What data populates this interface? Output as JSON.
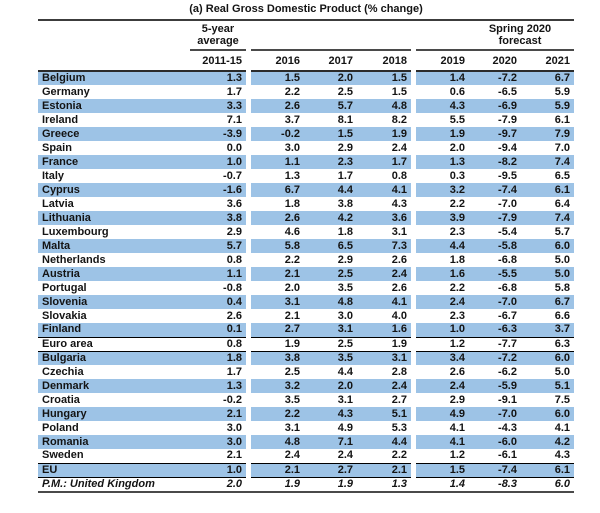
{
  "title": "(a) Real Gross Domestic Product (% change)",
  "table": {
    "group_labels": {
      "avg_line1": "5-year",
      "avg_line2": "average",
      "forecast_line1": "Spring 2020",
      "forecast_line2": "forecast"
    },
    "year_headers": [
      "2011-15",
      "2016",
      "2017",
      "2018",
      "2019",
      "2020",
      "2021"
    ],
    "highlight_color": "#9DC3E6",
    "rows": [
      {
        "name": "Belgium",
        "values": [
          "1.3",
          "1.5",
          "2.0",
          "1.5",
          "1.4",
          "-7.2",
          "6.7"
        ],
        "highlight": true
      },
      {
        "name": "Germany",
        "values": [
          "1.7",
          "2.2",
          "2.5",
          "1.5",
          "0.6",
          "-6.5",
          "5.9"
        ],
        "highlight": false
      },
      {
        "name": "Estonia",
        "values": [
          "3.3",
          "2.6",
          "5.7",
          "4.8",
          "4.3",
          "-6.9",
          "5.9"
        ],
        "highlight": true
      },
      {
        "name": "Ireland",
        "values": [
          "7.1",
          "3.7",
          "8.1",
          "8.2",
          "5.5",
          "-7.9",
          "6.1"
        ],
        "highlight": false
      },
      {
        "name": "Greece",
        "values": [
          "-3.9",
          "-0.2",
          "1.5",
          "1.9",
          "1.9",
          "-9.7",
          "7.9"
        ],
        "highlight": true
      },
      {
        "name": "Spain",
        "values": [
          "0.0",
          "3.0",
          "2.9",
          "2.4",
          "2.0",
          "-9.4",
          "7.0"
        ],
        "highlight": false
      },
      {
        "name": "France",
        "values": [
          "1.0",
          "1.1",
          "2.3",
          "1.7",
          "1.3",
          "-8.2",
          "7.4"
        ],
        "highlight": true
      },
      {
        "name": "Italy",
        "values": [
          "-0.7",
          "1.3",
          "1.7",
          "0.8",
          "0.3",
          "-9.5",
          "6.5"
        ],
        "highlight": false
      },
      {
        "name": "Cyprus",
        "values": [
          "-1.6",
          "6.7",
          "4.4",
          "4.1",
          "3.2",
          "-7.4",
          "6.1"
        ],
        "highlight": true
      },
      {
        "name": "Latvia",
        "values": [
          "3.6",
          "1.8",
          "3.8",
          "4.3",
          "2.2",
          "-7.0",
          "6.4"
        ],
        "highlight": false
      },
      {
        "name": "Lithuania",
        "values": [
          "3.8",
          "2.6",
          "4.2",
          "3.6",
          "3.9",
          "-7.9",
          "7.4"
        ],
        "highlight": true
      },
      {
        "name": "Luxembourg",
        "values": [
          "2.9",
          "4.6",
          "1.8",
          "3.1",
          "2.3",
          "-5.4",
          "5.7"
        ],
        "highlight": false
      },
      {
        "name": "Malta",
        "values": [
          "5.7",
          "5.8",
          "6.5",
          "7.3",
          "4.4",
          "-5.8",
          "6.0"
        ],
        "highlight": true
      },
      {
        "name": "Netherlands",
        "values": [
          "0.8",
          "2.2",
          "2.9",
          "2.6",
          "1.8",
          "-6.8",
          "5.0"
        ],
        "highlight": false
      },
      {
        "name": "Austria",
        "values": [
          "1.1",
          "2.1",
          "2.5",
          "2.4",
          "1.6",
          "-5.5",
          "5.0"
        ],
        "highlight": true
      },
      {
        "name": "Portugal",
        "values": [
          "-0.8",
          "2.0",
          "3.5",
          "2.6",
          "2.2",
          "-6.8",
          "5.8"
        ],
        "highlight": false
      },
      {
        "name": "Slovenia",
        "values": [
          "0.4",
          "3.1",
          "4.8",
          "4.1",
          "2.4",
          "-7.0",
          "6.7"
        ],
        "highlight": true
      },
      {
        "name": "Slovakia",
        "values": [
          "2.6",
          "2.1",
          "3.0",
          "4.0",
          "2.3",
          "-6.7",
          "6.6"
        ],
        "highlight": false
      },
      {
        "name": "Finland",
        "values": [
          "0.1",
          "2.7",
          "3.1",
          "1.6",
          "1.0",
          "-6.3",
          "3.7"
        ],
        "highlight": true,
        "divider_below": true
      },
      {
        "name": "Euro area",
        "values": [
          "0.8",
          "1.9",
          "2.5",
          "1.9",
          "1.2",
          "-7.7",
          "6.3"
        ],
        "highlight": false,
        "divider_below": true
      },
      {
        "name": "Bulgaria",
        "values": [
          "1.8",
          "3.8",
          "3.5",
          "3.1",
          "3.4",
          "-7.2",
          "6.0"
        ],
        "highlight": true
      },
      {
        "name": "Czechia",
        "values": [
          "1.7",
          "2.5",
          "4.4",
          "2.8",
          "2.6",
          "-6.2",
          "5.0"
        ],
        "highlight": false
      },
      {
        "name": "Denmark",
        "values": [
          "1.3",
          "3.2",
          "2.0",
          "2.4",
          "2.4",
          "-5.9",
          "5.1"
        ],
        "highlight": true
      },
      {
        "name": "Croatia",
        "values": [
          "-0.2",
          "3.5",
          "3.1",
          "2.7",
          "2.9",
          "-9.1",
          "7.5"
        ],
        "highlight": false
      },
      {
        "name": "Hungary",
        "values": [
          "2.1",
          "2.2",
          "4.3",
          "5.1",
          "4.9",
          "-7.0",
          "6.0"
        ],
        "highlight": true
      },
      {
        "name": "Poland",
        "values": [
          "3.0",
          "3.1",
          "4.9",
          "5.3",
          "4.1",
          "-4.3",
          "4.1"
        ],
        "highlight": false
      },
      {
        "name": "Romania",
        "values": [
          "3.0",
          "4.8",
          "7.1",
          "4.4",
          "4.1",
          "-6.0",
          "4.2"
        ],
        "highlight": true
      },
      {
        "name": "Sweden",
        "values": [
          "2.1",
          "2.4",
          "2.4",
          "2.2",
          "1.2",
          "-6.1",
          "4.3"
        ],
        "highlight": false,
        "divider_below": true
      },
      {
        "name": "EU",
        "values": [
          "1.0",
          "2.1",
          "2.7",
          "2.1",
          "1.5",
          "-7.4",
          "6.1"
        ],
        "highlight": true,
        "divider_below": true
      },
      {
        "name": "P.M.: United Kingdom",
        "values": [
          "2.0",
          "1.9",
          "1.9",
          "1.3",
          "1.4",
          "-8.3",
          "6.0"
        ],
        "highlight": false,
        "italic": true
      }
    ]
  }
}
